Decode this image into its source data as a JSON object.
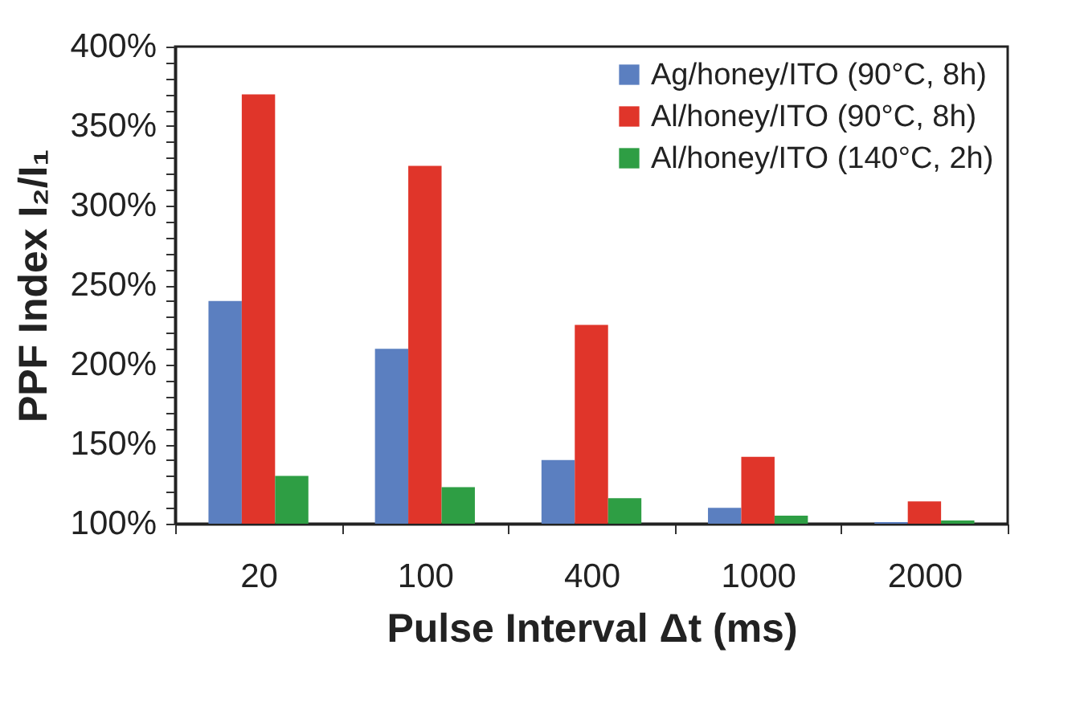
{
  "chart_data": {
    "type": "bar",
    "xlabel": "Pulse Interval Δt (ms)",
    "ylabel": "PPF Index I₂/I₁",
    "categories": [
      "20",
      "100",
      "400",
      "1000",
      "2000"
    ],
    "series": [
      {
        "name": "Ag/honey/ITO (90°C, 8h)",
        "color": "#5b7fc0",
        "values": [
          240,
          210,
          140,
          110,
          101
        ]
      },
      {
        "name": "Al/honey/ITO (90°C, 8h)",
        "color": "#e0352a",
        "values": [
          370,
          325,
          225,
          142,
          114
        ]
      },
      {
        "name": "Al/honey/ITO (140°C, 2h)",
        "color": "#2e9e44",
        "values": [
          130,
          123,
          116,
          105,
          102
        ]
      }
    ],
    "ylim": [
      100,
      400
    ],
    "yticks": [
      {
        "value": 100,
        "label": "100%"
      },
      {
        "value": 110,
        "label": null
      },
      {
        "value": 120,
        "label": null
      },
      {
        "value": 130,
        "label": null
      },
      {
        "value": 140,
        "label": null
      },
      {
        "value": 150,
        "label": "150%"
      },
      {
        "value": 160,
        "label": null
      },
      {
        "value": 170,
        "label": null
      },
      {
        "value": 180,
        "label": null
      },
      {
        "value": 190,
        "label": null
      },
      {
        "value": 200,
        "label": "200%"
      },
      {
        "value": 210,
        "label": null
      },
      {
        "value": 220,
        "label": null
      },
      {
        "value": 230,
        "label": null
      },
      {
        "value": 240,
        "label": null
      },
      {
        "value": 250,
        "label": "250%"
      },
      {
        "value": 260,
        "label": null
      },
      {
        "value": 270,
        "label": null
      },
      {
        "value": 280,
        "label": null
      },
      {
        "value": 290,
        "label": null
      },
      {
        "value": 300,
        "label": "300%"
      },
      {
        "value": 310,
        "label": null
      },
      {
        "value": 320,
        "label": null
      },
      {
        "value": 330,
        "label": null
      },
      {
        "value": 340,
        "label": null
      },
      {
        "value": 350,
        "label": "350%"
      },
      {
        "value": 360,
        "label": null
      },
      {
        "value": 370,
        "label": null
      },
      {
        "value": 380,
        "label": null
      },
      {
        "value": 390,
        "label": null
      },
      {
        "value": 400,
        "label": "400%"
      }
    ],
    "grid": false,
    "legend": "top right"
  }
}
